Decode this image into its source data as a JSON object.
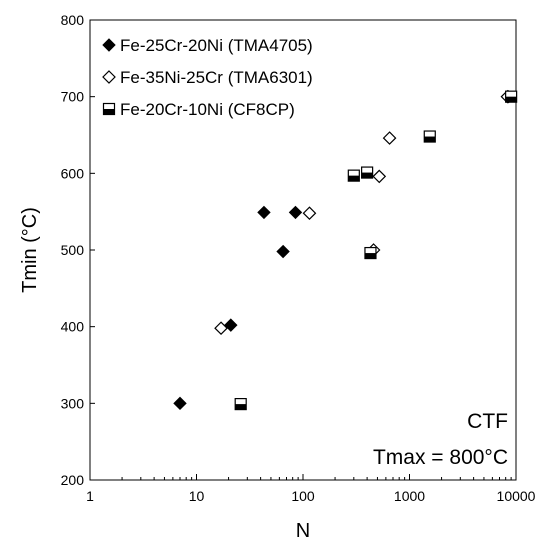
{
  "chart_data": {
    "type": "scatter",
    "title": "",
    "xlabel": "N",
    "ylabel": "Tmin (°C)",
    "xscale": "log",
    "xlim": [
      1,
      10000
    ],
    "ylim": [
      200,
      800
    ],
    "x_ticks": [
      1,
      10,
      100,
      1000,
      10000
    ],
    "x_tick_labels": [
      "1",
      "10",
      "100",
      "1000",
      "10000"
    ],
    "y_ticks": [
      200,
      300,
      400,
      500,
      600,
      700,
      800
    ],
    "y_tick_labels": [
      "200",
      "300",
      "400",
      "500",
      "600",
      "700",
      "800"
    ],
    "grid": false,
    "legend_position": "top-left",
    "annotations": [
      "CTF",
      "Tmax = 800°C"
    ],
    "series": [
      {
        "name": "Fe-25Cr-20Ni (TMA4705)",
        "marker": "filled-diamond",
        "color": "#000000",
        "points": [
          [
            7,
            300
          ],
          [
            21,
            402
          ],
          [
            43,
            549
          ],
          [
            65,
            498
          ],
          [
            85,
            549
          ],
          [
            8500,
            700
          ]
        ]
      },
      {
        "name": "Fe-35Ni-25Cr (TMA6301)",
        "marker": "open-diamond",
        "color": "#000000",
        "points": [
          [
            17,
            398
          ],
          [
            115,
            548
          ],
          [
            460,
            500
          ],
          [
            520,
            596
          ],
          [
            650,
            646
          ],
          [
            8300,
            700
          ]
        ]
      },
      {
        "name": "Fe-20Cr-10Ni (CF8CP)",
        "marker": "half-filled-square",
        "color": "#000000",
        "points": [
          [
            26,
            299
          ],
          [
            300,
            597
          ],
          [
            400,
            601
          ],
          [
            430,
            496
          ],
          [
            1550,
            648
          ],
          [
            9000,
            700
          ]
        ]
      }
    ]
  }
}
